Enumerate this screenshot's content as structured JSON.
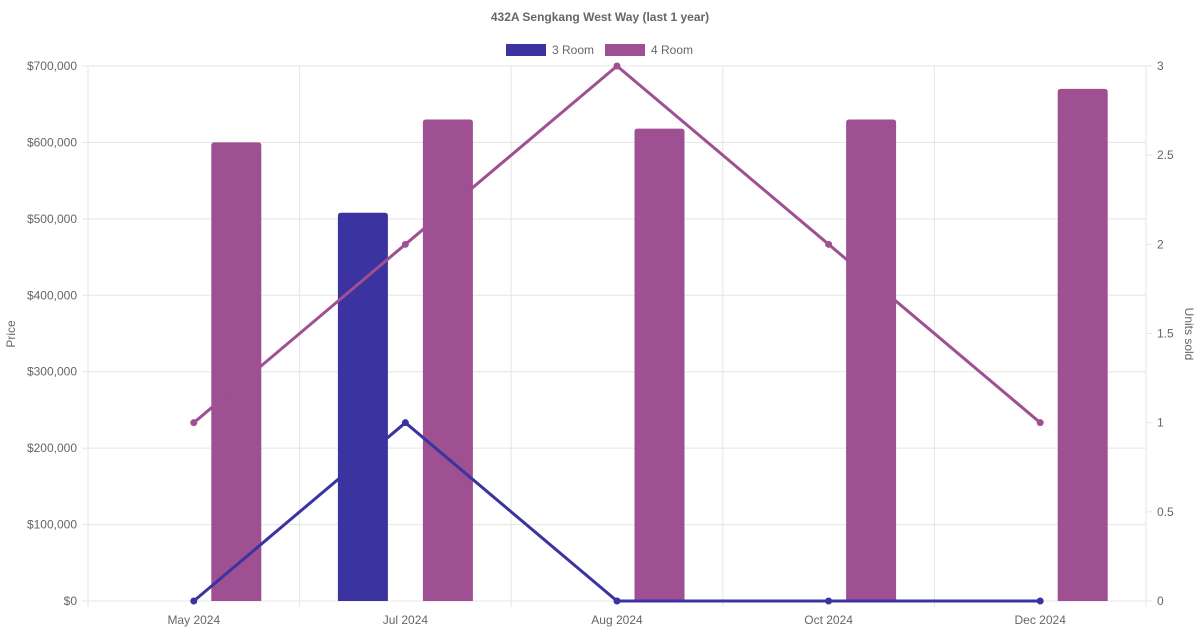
{
  "chart_data": {
    "type": "bar",
    "title": "432A Sengkang West Way (last 1 year)",
    "categories": [
      "May 2024",
      "Jul 2024",
      "Aug 2024",
      "Oct 2024",
      "Dec 2024"
    ],
    "legend": {
      "position": "top",
      "entries": [
        {
          "name": "3 Room",
          "color": "#3a33a0"
        },
        {
          "name": "4 Room",
          "color": "#9e5093"
        }
      ]
    },
    "y_left": {
      "label": "Price",
      "min": 0,
      "max": 700000,
      "ticks": [
        "$0",
        "$100,000",
        "$200,000",
        "$300,000",
        "$400,000",
        "$500,000",
        "$600,000",
        "$700,000"
      ]
    },
    "y_right": {
      "label": "Units sold",
      "min": 0,
      "max": 3,
      "ticks": [
        "0",
        "0.5",
        "1",
        "1.5",
        "2",
        "2.5",
        "3"
      ]
    },
    "grid": true,
    "bar_series": [
      {
        "name": "3 Room",
        "color": "#3a33a0",
        "axis": "price",
        "values": [
          null,
          508000,
          null,
          null,
          null
        ]
      },
      {
        "name": "4 Room",
        "color": "#9e5093",
        "axis": "price",
        "values": [
          600000,
          630000,
          618000,
          630000,
          670000
        ]
      }
    ],
    "line_series": [
      {
        "name": "3 Room",
        "color": "#3a33a0",
        "axis": "units",
        "values": [
          0,
          1,
          0,
          0,
          0
        ]
      },
      {
        "name": "4 Room",
        "color": "#9e5093",
        "axis": "units",
        "values": [
          1,
          2,
          3,
          2,
          1
        ]
      }
    ]
  }
}
